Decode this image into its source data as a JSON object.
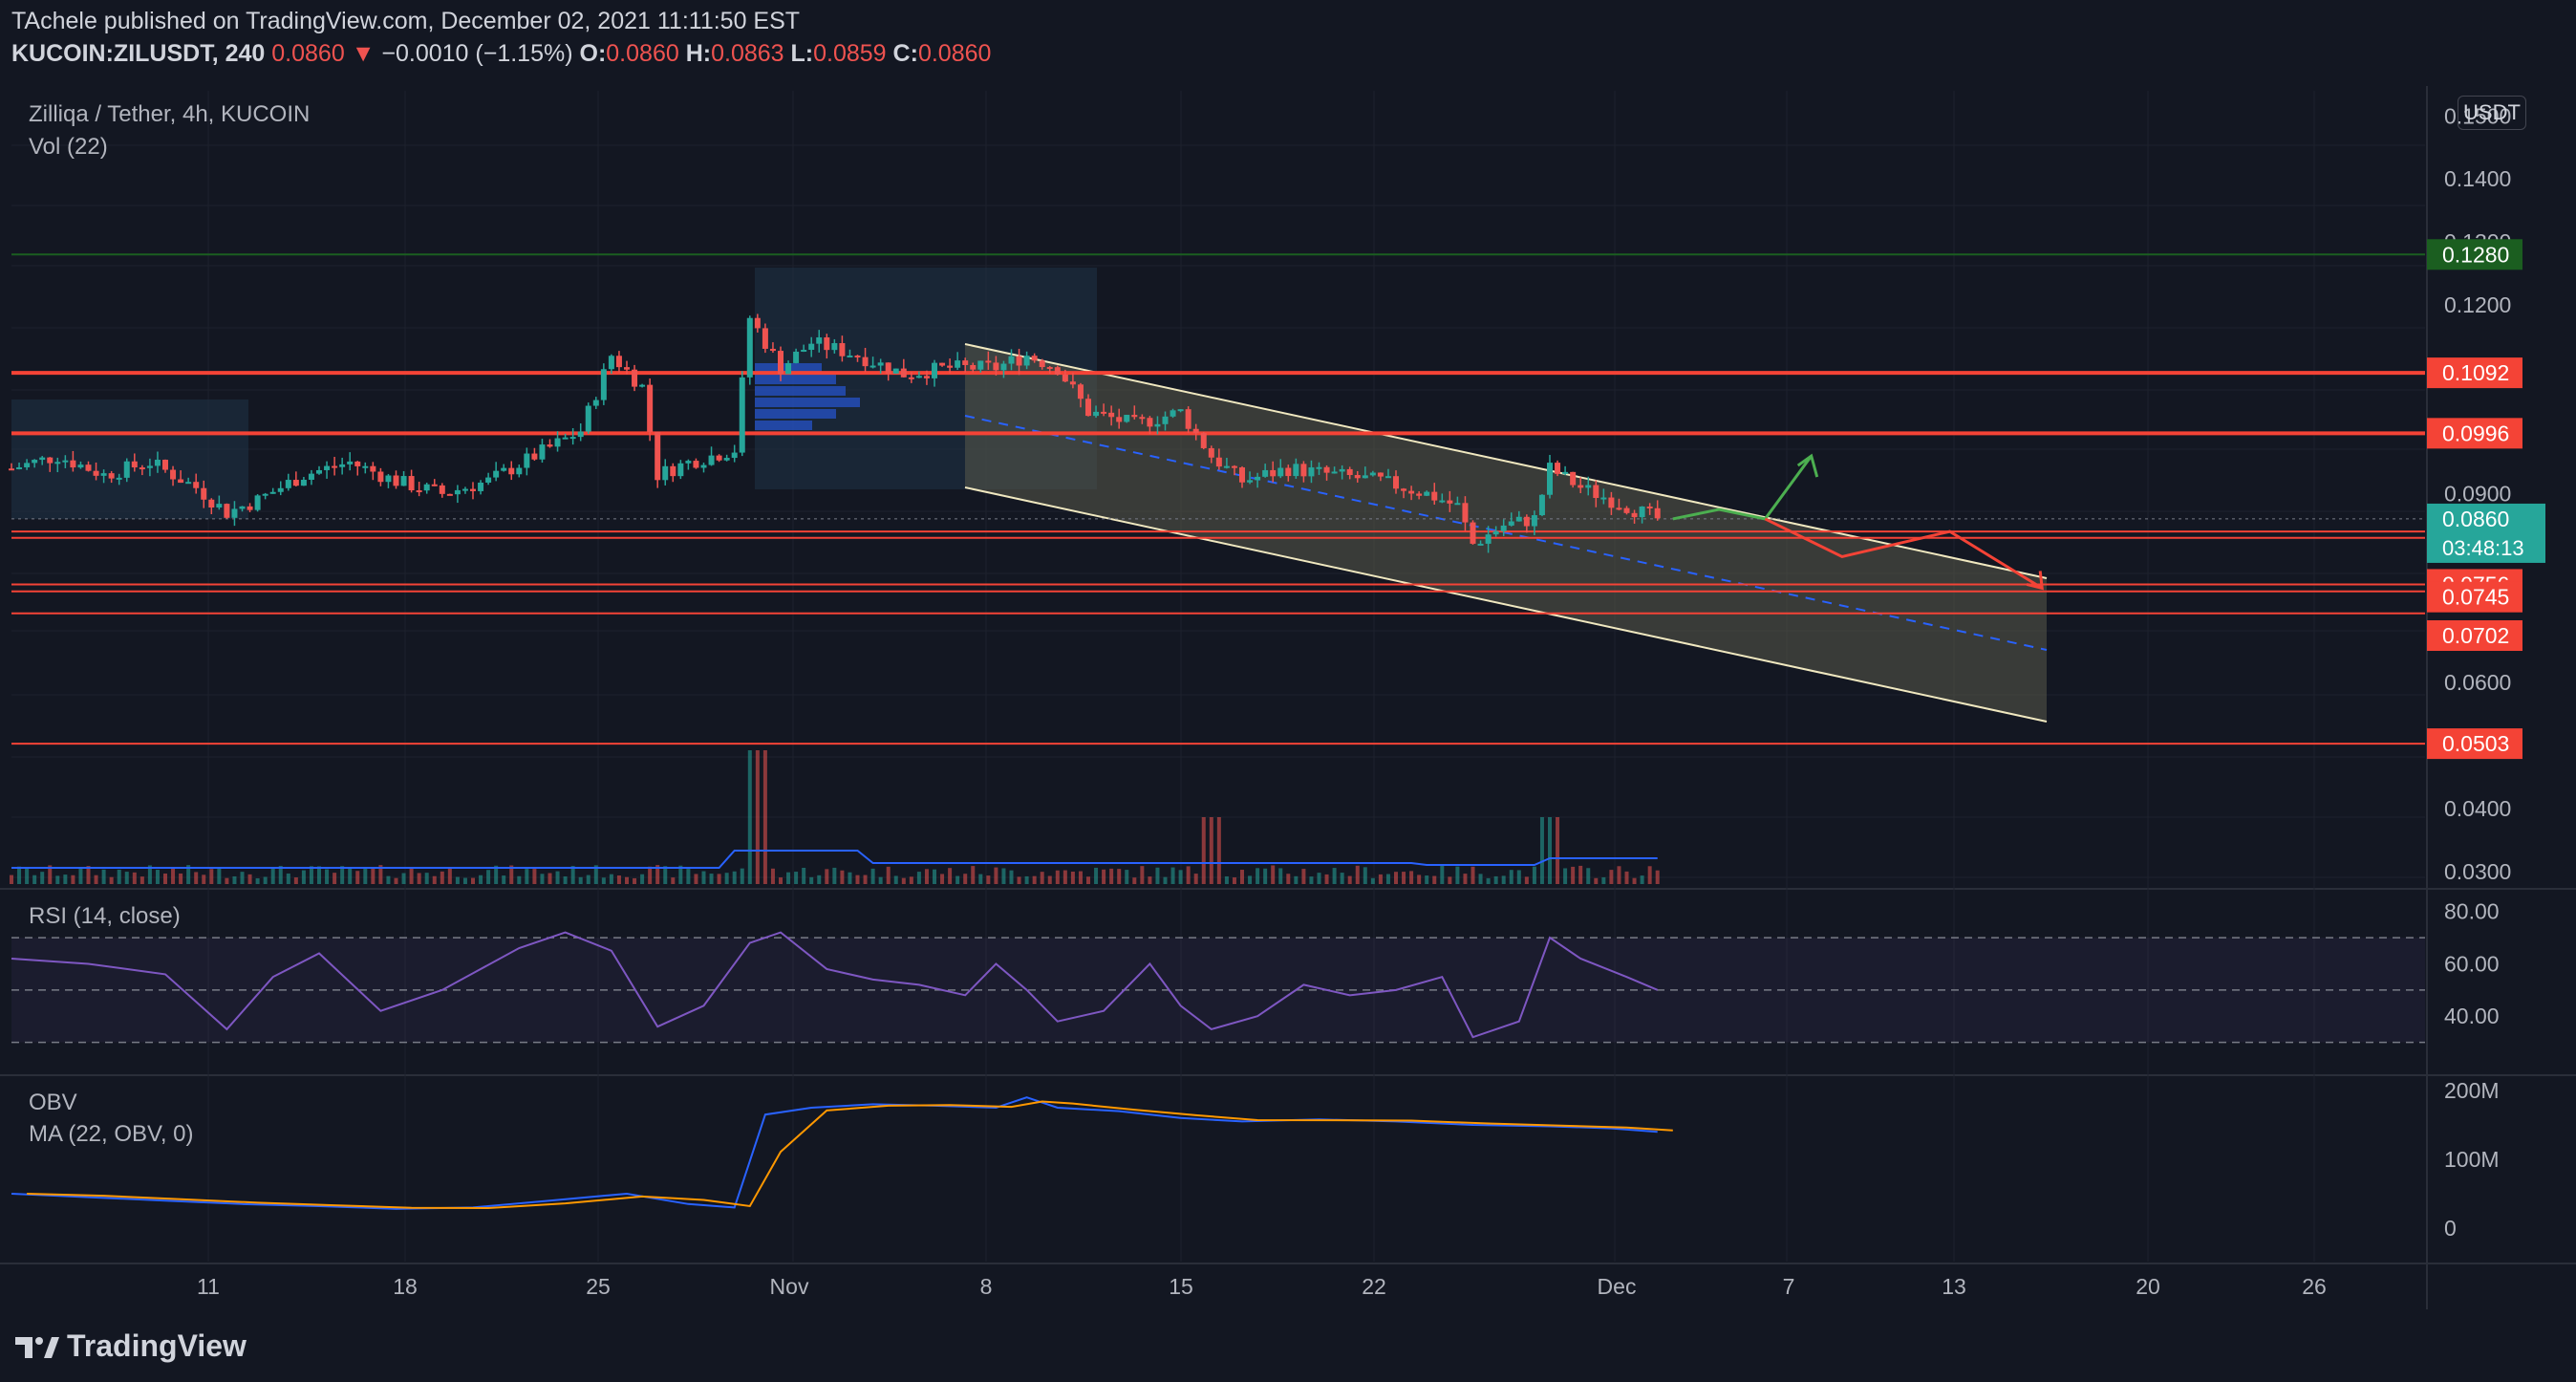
{
  "header": {
    "published": "TAchele published on TradingView.com, December 02, 2021 11:11:50 EST",
    "symbol": "KUCOIN:ZILUSDT, 240",
    "price": "0.0860",
    "change_arrow": "▼",
    "change": "−0.0010 (−1.15%)",
    "o_label": "O:",
    "o_value": "0.0860",
    "h_label": "H:",
    "h_value": "0.0863",
    "l_label": "L:",
    "l_value": "0.0859",
    "c_label": "C:",
    "c_value": "0.0860"
  },
  "pane_labels": {
    "title": "Zilliqa / Tether, 4h, KUCOIN",
    "vol": "Vol (22)",
    "rsi": "RSI (14, close)",
    "obv": "OBV",
    "obv_ma": "MA (22, OBV, 0)"
  },
  "currency_button": "USDT",
  "countdown": "03:48:13",
  "logo_text": "TradingView",
  "colors": {
    "background": "#131722",
    "up": "#26a69a",
    "down": "#ef5350",
    "level_line": "#f44336",
    "channel_fill": "#5a5a4a",
    "rsi_line": "#7e57c2",
    "obv_line": "#2962ff",
    "obv_ma": "#ff9800",
    "arrow_green": "#4caf50",
    "arrow_red": "#f44336"
  },
  "chart_data": {
    "type": "candlestick",
    "price_axis": {
      "ticks": [
        "0.1500",
        "0.1400",
        "0.1300",
        "0.1200",
        "0.0900",
        "0.0600",
        "0.0400",
        "0.0300"
      ],
      "range": [
        0.028,
        0.154
      ]
    },
    "level_labels": [
      {
        "value": 0.128,
        "text": "0.1280",
        "color": "#1b5e20"
      },
      {
        "value": 0.1092,
        "text": "0.1092",
        "color": "#f44336"
      },
      {
        "value": 0.0996,
        "text": "0.0996",
        "color": "#f44336"
      },
      {
        "value": 0.086,
        "text": "0.0860",
        "color": "#26a69a"
      },
      {
        "value": 0.0756,
        "text": "0.0756",
        "color": "#f44336"
      },
      {
        "value": 0.0745,
        "text": "0.0745",
        "color": "#f44336"
      },
      {
        "value": 0.0702,
        "text": "0.0702",
        "color": "#f44336"
      },
      {
        "value": 0.0503,
        "text": "0.0503",
        "color": "#f44336"
      }
    ],
    "horizontal_levels": [
      0.128,
      0.1092,
      0.0996,
      0.084,
      0.083,
      0.0756,
      0.0745,
      0.071,
      0.0503
    ],
    "date_axis": [
      "11",
      "18",
      "25",
      "Nov",
      "8",
      "15",
      "22",
      "Dec",
      "7",
      "13",
      "20",
      "26"
    ],
    "rsi_axis": [
      "80.00",
      "60.00",
      "40.00"
    ],
    "obv_axis": [
      "200M",
      "100M",
      "0"
    ],
    "price_path": [
      [
        0,
        0.094
      ],
      [
        3,
        0.096
      ],
      [
        6,
        0.093
      ],
      [
        9,
        0.095
      ],
      [
        12,
        0.091
      ],
      [
        14,
        0.087
      ],
      [
        16,
        0.089
      ],
      [
        19,
        0.093
      ],
      [
        22,
        0.095
      ],
      [
        25,
        0.092
      ],
      [
        28,
        0.09
      ],
      [
        31,
        0.092
      ],
      [
        34,
        0.096
      ],
      [
        37,
        0.1
      ],
      [
        39,
        0.112
      ],
      [
        41,
        0.107
      ],
      [
        42,
        0.093
      ],
      [
        44,
        0.095
      ],
      [
        47,
        0.097
      ],
      [
        48,
        0.118
      ],
      [
        50,
        0.11
      ],
      [
        52,
        0.114
      ],
      [
        55,
        0.112
      ],
      [
        58,
        0.109
      ],
      [
        61,
        0.11
      ],
      [
        64,
        0.11
      ],
      [
        66,
        0.112
      ],
      [
        68,
        0.11
      ],
      [
        70,
        0.103
      ],
      [
        73,
        0.101
      ],
      [
        76,
        0.103
      ],
      [
        78,
        0.096
      ],
      [
        80,
        0.092
      ],
      [
        83,
        0.094
      ],
      [
        86,
        0.093
      ],
      [
        89,
        0.092
      ],
      [
        92,
        0.09
      ],
      [
        94,
        0.088
      ],
      [
        95,
        0.082
      ],
      [
        97,
        0.085
      ],
      [
        99,
        0.086
      ],
      [
        100,
        0.094
      ],
      [
        102,
        0.091
      ],
      [
        104,
        0.089
      ],
      [
        106,
        0.087
      ],
      [
        107,
        0.086
      ]
    ],
    "rsi_path": [
      [
        0,
        62
      ],
      [
        5,
        60
      ],
      [
        10,
        56
      ],
      [
        14,
        35
      ],
      [
        17,
        55
      ],
      [
        20,
        64
      ],
      [
        24,
        42
      ],
      [
        28,
        50
      ],
      [
        33,
        66
      ],
      [
        36,
        72
      ],
      [
        39,
        65
      ],
      [
        42,
        36
      ],
      [
        45,
        44
      ],
      [
        48,
        68
      ],
      [
        50,
        72
      ],
      [
        53,
        58
      ],
      [
        56,
        54
      ],
      [
        59,
        52
      ],
      [
        62,
        48
      ],
      [
        64,
        60
      ],
      [
        66,
        50
      ],
      [
        68,
        38
      ],
      [
        71,
        42
      ],
      [
        74,
        60
      ],
      [
        76,
        44
      ],
      [
        78,
        35
      ],
      [
        81,
        40
      ],
      [
        84,
        52
      ],
      [
        87,
        48
      ],
      [
        90,
        50
      ],
      [
        93,
        55
      ],
      [
        95,
        32
      ],
      [
        98,
        38
      ],
      [
        100,
        70
      ],
      [
        102,
        62
      ],
      [
        105,
        55
      ],
      [
        107,
        50
      ]
    ],
    "obv_path": [
      [
        0,
        50
      ],
      [
        5,
        45
      ],
      [
        10,
        40
      ],
      [
        15,
        35
      ],
      [
        20,
        32
      ],
      [
        25,
        28
      ],
      [
        30,
        30
      ],
      [
        35,
        40
      ],
      [
        40,
        50
      ],
      [
        44,
        35
      ],
      [
        47,
        30
      ],
      [
        49,
        165
      ],
      [
        52,
        175
      ],
      [
        56,
        180
      ],
      [
        60,
        178
      ],
      [
        64,
        175
      ],
      [
        66,
        190
      ],
      [
        68,
        175
      ],
      [
        72,
        170
      ],
      [
        76,
        160
      ],
      [
        80,
        155
      ],
      [
        85,
        158
      ],
      [
        90,
        155
      ],
      [
        95,
        150
      ],
      [
        100,
        148
      ],
      [
        104,
        145
      ],
      [
        107,
        140
      ]
    ],
    "projection_green": [
      [
        108,
        0.086
      ],
      [
        111,
        0.0875
      ],
      [
        114,
        0.086
      ],
      [
        117,
        0.096
      ]
    ],
    "projection_red": [
      [
        114,
        0.086
      ],
      [
        119,
        0.08
      ],
      [
        126,
        0.084
      ],
      [
        132,
        0.075
      ]
    ]
  }
}
